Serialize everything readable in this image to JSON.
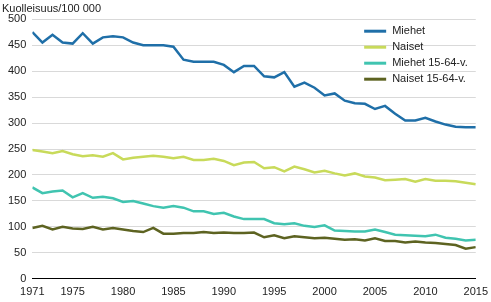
{
  "chart_data": {
    "type": "line",
    "y_label": "Kuolleisuus/100 000",
    "x": [
      1971,
      1972,
      1973,
      1974,
      1975,
      1976,
      1977,
      1978,
      1979,
      1980,
      1981,
      1982,
      1983,
      1984,
      1985,
      1986,
      1987,
      1988,
      1989,
      1990,
      1991,
      1992,
      1993,
      1994,
      1995,
      1996,
      1997,
      1998,
      1999,
      2000,
      2001,
      2002,
      2003,
      2004,
      2005,
      2006,
      2007,
      2008,
      2009,
      2010,
      2011,
      2012,
      2013,
      2014,
      2015
    ],
    "series": [
      {
        "name": "Miehet",
        "color": "#1f6fa8",
        "values": [
          475,
          455,
          470,
          455,
          453,
          473,
          453,
          465,
          467,
          465,
          455,
          450,
          450,
          450,
          447,
          422,
          418,
          418,
          418,
          412,
          398,
          410,
          410,
          390,
          388,
          398,
          370,
          378,
          368,
          353,
          357,
          343,
          338,
          337,
          327,
          333,
          318,
          305,
          305,
          310,
          303,
          297,
          293,
          292,
          292
        ]
      },
      {
        "name": "Naiset",
        "color": "#c8da5a",
        "values": [
          248,
          245,
          242,
          246,
          240,
          236,
          238,
          235,
          242,
          230,
          233,
          235,
          237,
          235,
          232,
          235,
          229,
          229,
          231,
          227,
          219,
          224,
          225,
          213,
          215,
          207,
          216,
          211,
          205,
          208,
          203,
          199,
          203,
          197,
          195,
          190,
          191,
          192,
          187,
          192,
          189,
          189,
          188,
          185,
          182
        ]
      },
      {
        "name": "Miehet 15-64-v.",
        "color": "#40c4b0",
        "values": [
          176,
          165,
          168,
          170,
          157,
          165,
          156,
          158,
          155,
          148,
          150,
          145,
          140,
          137,
          140,
          137,
          130,
          130,
          125,
          127,
          120,
          115,
          115,
          115,
          107,
          105,
          107,
          102,
          100,
          103,
          93,
          92,
          91,
          91,
          95,
          90,
          85,
          84,
          83,
          82,
          85,
          79,
          77,
          74,
          75
        ]
      },
      {
        "name": "Naiset 15-64-v.",
        "color": "#5d6321",
        "values": [
          98,
          102,
          95,
          100,
          97,
          96,
          100,
          95,
          98,
          95,
          92,
          90,
          98,
          87,
          87,
          88,
          88,
          90,
          88,
          89,
          88,
          88,
          89,
          80,
          84,
          78,
          82,
          80,
          78,
          79,
          77,
          75,
          76,
          74,
          78,
          73,
          73,
          70,
          72,
          70,
          69,
          67,
          65,
          58,
          61
        ]
      }
    ],
    "xlim": [
      1971,
      2015
    ],
    "xticks": [
      1971,
      1975,
      1980,
      1985,
      1990,
      1995,
      2000,
      2005,
      2010,
      2015
    ],
    "ylim": [
      0,
      500
    ],
    "yticks": [
      0,
      50,
      100,
      150,
      200,
      250,
      300,
      350,
      400,
      450,
      500
    ],
    "grid": true,
    "legend": "top right"
  }
}
